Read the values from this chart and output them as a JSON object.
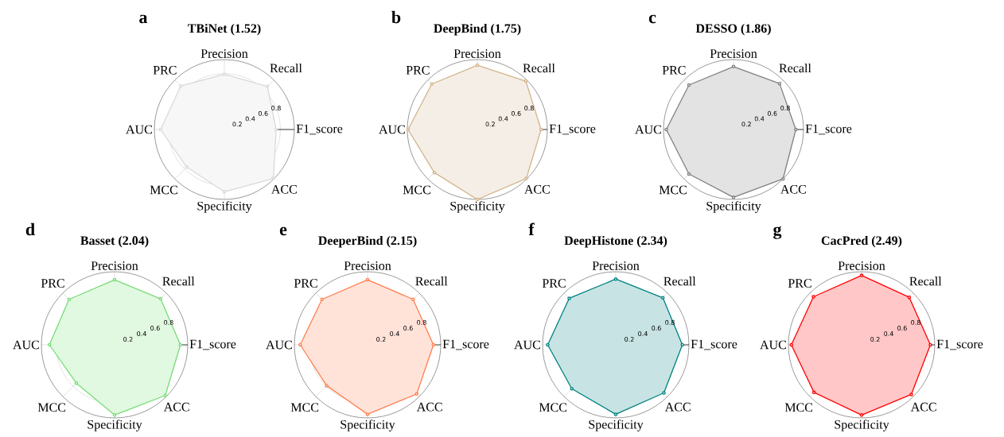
{
  "chart_data": [
    {
      "type": "radar",
      "title": "TBiNet (1.52)",
      "annotations": [
        "a"
      ],
      "categories": [
        "Precision",
        "Recall",
        "F1_score",
        "ACC",
        "Specificity",
        "MCC",
        "AUC",
        "PRC"
      ],
      "ylim": [
        0,
        1
      ],
      "yticks": [
        0.2,
        0.4,
        0.6,
        0.8
      ],
      "grid": true,
      "marker": "circle",
      "series": [
        {
          "color": "#d9d9d9",
          "values": [
            0.79,
            0.87,
            0.74,
            0.99,
            0.89,
            0.76,
            0.91,
            0.88
          ]
        }
      ]
    },
    {
      "type": "radar",
      "title": "DeepBind (1.75)",
      "annotations": [
        "b"
      ],
      "categories": [
        "Precision",
        "Recall",
        "F1_score",
        "ACC",
        "Specificity",
        "MCC",
        "AUC",
        "PRC"
      ],
      "ylim": [
        0,
        1
      ],
      "yticks": [
        0.2,
        0.4,
        0.6,
        0.8
      ],
      "grid": true,
      "marker": "circle",
      "series": [
        {
          "color": "#d2b48c",
          "values": [
            0.92,
            0.98,
            0.91,
            0.99,
            1.0,
            0.87,
            0.99,
            0.92
          ]
        }
      ]
    },
    {
      "type": "radar",
      "title": "DESSO (1.86)",
      "annotations": [
        "c"
      ],
      "categories": [
        "Precision",
        "Recall",
        "F1_score",
        "ACC",
        "Specificity",
        "MCC",
        "AUC",
        "PRC"
      ],
      "ylim": [
        0,
        1
      ],
      "yticks": [
        0.2,
        0.4,
        0.6,
        0.8
      ],
      "grid": true,
      "marker": "circle",
      "series": [
        {
          "color": "#808080",
          "values": [
            0.9,
            0.93,
            0.89,
            1.0,
            0.97,
            0.9,
            0.96,
            0.9
          ]
        }
      ]
    },
    {
      "type": "radar",
      "title": "Basset (2.04)",
      "annotations": [
        "d"
      ],
      "categories": [
        "Precision",
        "Recall",
        "F1_score",
        "ACC",
        "Specificity",
        "MCC",
        "AUC",
        "PRC"
      ],
      "ylim": [
        0,
        1
      ],
      "yticks": [
        0.2,
        0.4,
        0.6,
        0.8
      ],
      "grid": true,
      "marker": "circle",
      "series": [
        {
          "color": "#77dd77",
          "values": [
            0.89,
            0.89,
            0.9,
            0.98,
            0.96,
            0.74,
            0.89,
            0.88
          ]
        }
      ]
    },
    {
      "type": "radar",
      "title": "DeeperBind (2.15)",
      "annotations": [
        "e"
      ],
      "categories": [
        "Precision",
        "Recall",
        "F1_score",
        "ACC",
        "Specificity",
        "MCC",
        "AUC",
        "PRC"
      ],
      "ylim": [
        0,
        1
      ],
      "yticks": [
        0.2,
        0.4,
        0.6,
        0.8
      ],
      "grid": true,
      "marker": "circle",
      "series": [
        {
          "color": "#ff7f50",
          "values": [
            0.89,
            0.88,
            0.9,
            0.95,
            0.95,
            0.79,
            0.92,
            0.88
          ]
        }
      ]
    },
    {
      "type": "radar",
      "title": "DeepHistone (2.34)",
      "annotations": [
        "f"
      ],
      "categories": [
        "Precision",
        "Recall",
        "F1_score",
        "ACC",
        "Specificity",
        "MCC",
        "AUC",
        "PRC"
      ],
      "ylim": [
        0,
        1
      ],
      "yticks": [
        0.2,
        0.4,
        0.6,
        0.8
      ],
      "grid": true,
      "marker": "circle",
      "series": [
        {
          "color": "#008080",
          "values": [
            0.9,
            0.91,
            0.91,
            0.93,
            0.95,
            0.85,
            0.93,
            0.9
          ]
        }
      ]
    },
    {
      "type": "radar",
      "title": "CacPred (2.49)",
      "annotations": [
        "g"
      ],
      "categories": [
        "Precision",
        "Recall",
        "F1_score",
        "ACC",
        "Specificity",
        "MCC",
        "AUC",
        "PRC"
      ],
      "ylim": [
        0,
        1
      ],
      "yticks": [
        0.2,
        0.4,
        0.6,
        0.8
      ],
      "grid": true,
      "marker": "circle",
      "series": [
        {
          "color": "#ff0000",
          "values": [
            0.95,
            0.92,
            0.94,
            0.96,
            0.96,
            0.92,
            0.96,
            0.93
          ]
        }
      ]
    }
  ]
}
